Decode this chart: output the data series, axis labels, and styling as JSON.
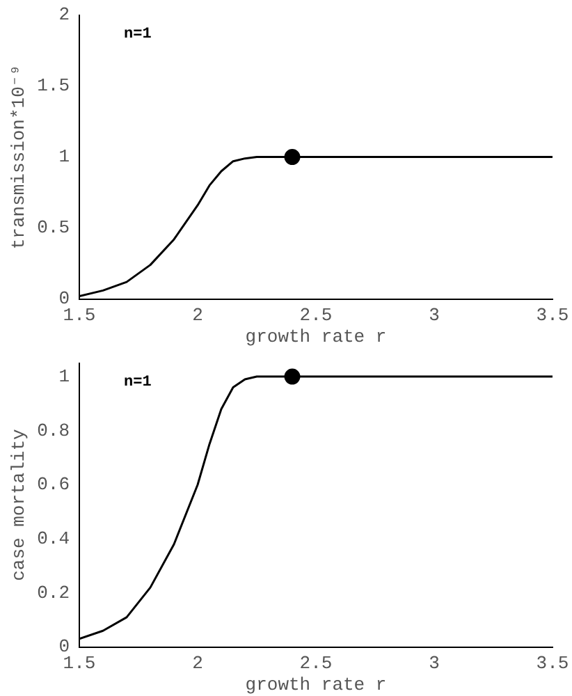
{
  "chart_data": [
    {
      "type": "line",
      "xlabel": "growth rate r",
      "ylabel": "transmission*10⁻⁹",
      "xlim": [
        1.5,
        3.5
      ],
      "xticks": [
        1.5,
        2,
        2.5,
        3,
        3.5
      ],
      "ylim": [
        0,
        2
      ],
      "yticks": [
        0,
        0.5,
        1,
        1.5,
        2
      ],
      "grid": false,
      "legend": false,
      "annotations": [
        "n=1"
      ],
      "series": [
        {
          "marker": "none",
          "color": "#000000",
          "x": [
            1.5,
            1.6,
            1.7,
            1.8,
            1.9,
            2.0,
            2.05,
            2.1,
            2.15,
            2.2,
            2.25,
            2.4,
            3.5
          ],
          "values": [
            0.02,
            0.06,
            0.12,
            0.24,
            0.42,
            0.66,
            0.8,
            0.9,
            0.97,
            0.99,
            1,
            1,
            1
          ]
        },
        {
          "type": "scatter",
          "marker": "circle",
          "color": "#000000",
          "x": [
            2.4
          ],
          "values": [
            1
          ]
        }
      ]
    },
    {
      "type": "line",
      "xlabel": "growth rate r",
      "ylabel": "case mortality",
      "xlim": [
        1.5,
        3.5
      ],
      "xticks": [
        1.5,
        2,
        2.5,
        3,
        3.5
      ],
      "ylim": [
        0,
        1.05
      ],
      "yticks": [
        0,
        0.2,
        0.4,
        0.6,
        0.8,
        1
      ],
      "grid": false,
      "legend": false,
      "annotations": [
        "n=1"
      ],
      "series": [
        {
          "marker": "none",
          "color": "#000000",
          "x": [
            1.5,
            1.6,
            1.7,
            1.8,
            1.9,
            2.0,
            2.05,
            2.1,
            2.15,
            2.2,
            2.25,
            2.4,
            3.5
          ],
          "values": [
            0.03,
            0.06,
            0.11,
            0.22,
            0.38,
            0.6,
            0.75,
            0.88,
            0.96,
            0.99,
            1,
            1,
            1
          ]
        },
        {
          "type": "scatter",
          "marker": "circle",
          "color": "#000000",
          "x": [
            2.4
          ],
          "values": [
            1
          ]
        }
      ]
    }
  ]
}
